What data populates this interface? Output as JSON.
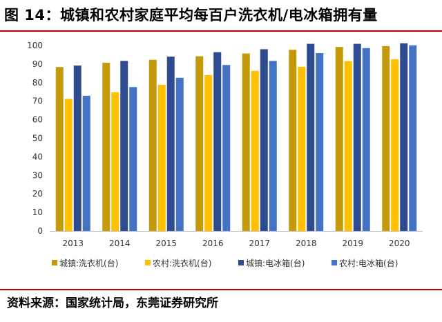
{
  "title": "图 14：城镇和农村家庭平均每百户洗衣机/电冰箱拥有量",
  "source": "资料来源：国家统计局，东莞证券研究所",
  "chart_data": {
    "type": "bar",
    "categories": [
      "2013",
      "2014",
      "2015",
      "2016",
      "2017",
      "2018",
      "2019",
      "2020"
    ],
    "ylim": [
      0,
      100
    ],
    "yticks": [
      "0",
      "10",
      "20",
      "30",
      "40",
      "50",
      "60",
      "70",
      "80",
      "90",
      "100"
    ],
    "grid": false,
    "legend_position": "bottom",
    "series": [
      {
        "name": "城镇:洗衣机(台)",
        "color": "#c49a0a",
        "values": [
          88.4,
          90.7,
          92.3,
          94.2,
          95.7,
          97.7,
          99.2,
          99.7
        ]
      },
      {
        "name": "农村:洗衣机(台)",
        "color": "#ffc000",
        "values": [
          71.2,
          74.8,
          78.8,
          84.0,
          86.3,
          88.5,
          91.6,
          92.6
        ]
      },
      {
        "name": "城镇:电冰箱(台)",
        "color": "#2f4b8f",
        "values": [
          89.2,
          91.7,
          94.0,
          96.4,
          98.0,
          100.9,
          100.9,
          101.2
        ]
      },
      {
        "name": "农村:电冰箱(台)",
        "color": "#4472c4",
        "values": [
          72.9,
          77.6,
          82.6,
          89.5,
          91.7,
          95.9,
          98.6,
          100.1
        ]
      }
    ]
  }
}
